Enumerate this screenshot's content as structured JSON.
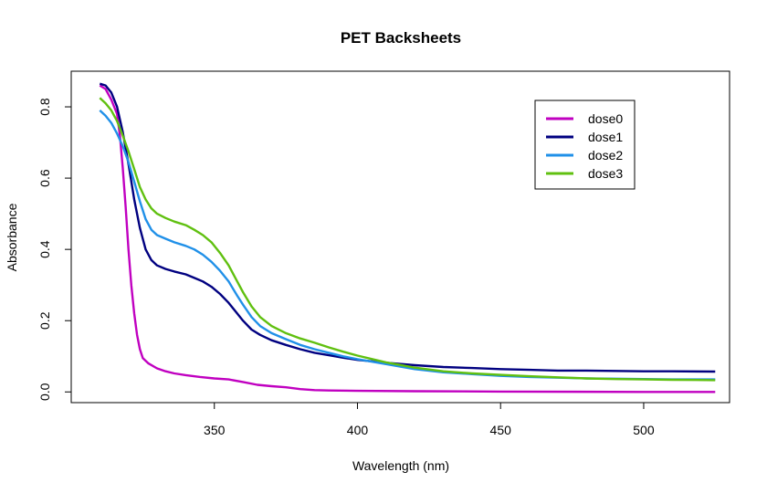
{
  "chart_data": {
    "type": "line",
    "title": "PET Backsheets",
    "xlabel": "Wavelength (nm)",
    "ylabel": "Absorbance",
    "xlim": [
      300,
      530
    ],
    "ylim": [
      -0.03,
      0.9
    ],
    "x_ticks": [
      "350",
      "400",
      "450",
      "500"
    ],
    "x_tick_values": [
      350,
      400,
      450,
      500
    ],
    "y_ticks": [
      "0.0",
      "0.2",
      "0.4",
      "0.6",
      "0.8"
    ],
    "y_tick_values": [
      0,
      0.2,
      0.4,
      0.6,
      0.8
    ],
    "grid": false,
    "legend_position": "top-right",
    "series": [
      {
        "name": "dose0",
        "color": "#C000C0",
        "points": [
          [
            310,
            0.86
          ],
          [
            312,
            0.85
          ],
          [
            314,
            0.82
          ],
          [
            316,
            0.78
          ],
          [
            317,
            0.72
          ],
          [
            318,
            0.63
          ],
          [
            319,
            0.52
          ],
          [
            320,
            0.4
          ],
          [
            321,
            0.3
          ],
          [
            322,
            0.22
          ],
          [
            323,
            0.16
          ],
          [
            324,
            0.12
          ],
          [
            325,
            0.095
          ],
          [
            327,
            0.08
          ],
          [
            330,
            0.066
          ],
          [
            333,
            0.058
          ],
          [
            336,
            0.052
          ],
          [
            340,
            0.047
          ],
          [
            345,
            0.042
          ],
          [
            350,
            0.038
          ],
          [
            355,
            0.035
          ],
          [
            360,
            0.028
          ],
          [
            365,
            0.02
          ],
          [
            370,
            0.016
          ],
          [
            375,
            0.013
          ],
          [
            380,
            0.008
          ],
          [
            385,
            0.005
          ],
          [
            390,
            0.004
          ],
          [
            400,
            0.003
          ],
          [
            420,
            0.002
          ],
          [
            450,
            0.001
          ],
          [
            500,
            0.0
          ],
          [
            525,
            0.0
          ]
        ]
      },
      {
        "name": "dose1",
        "color": "#000080",
        "points": [
          [
            310,
            0.865
          ],
          [
            312,
            0.86
          ],
          [
            314,
            0.84
          ],
          [
            316,
            0.8
          ],
          [
            318,
            0.73
          ],
          [
            320,
            0.64
          ],
          [
            322,
            0.54
          ],
          [
            324,
            0.46
          ],
          [
            326,
            0.4
          ],
          [
            328,
            0.37
          ],
          [
            330,
            0.355
          ],
          [
            333,
            0.345
          ],
          [
            336,
            0.338
          ],
          [
            340,
            0.33
          ],
          [
            343,
            0.32
          ],
          [
            346,
            0.31
          ],
          [
            349,
            0.295
          ],
          [
            352,
            0.275
          ],
          [
            355,
            0.25
          ],
          [
            358,
            0.22
          ],
          [
            360,
            0.2
          ],
          [
            363,
            0.175
          ],
          [
            366,
            0.16
          ],
          [
            370,
            0.145
          ],
          [
            375,
            0.132
          ],
          [
            380,
            0.12
          ],
          [
            385,
            0.11
          ],
          [
            390,
            0.103
          ],
          [
            395,
            0.096
          ],
          [
            400,
            0.09
          ],
          [
            410,
            0.082
          ],
          [
            420,
            0.075
          ],
          [
            430,
            0.07
          ],
          [
            440,
            0.067
          ],
          [
            450,
            0.064
          ],
          [
            460,
            0.062
          ],
          [
            470,
            0.06
          ],
          [
            480,
            0.06
          ],
          [
            490,
            0.059
          ],
          [
            500,
            0.058
          ],
          [
            510,
            0.058
          ],
          [
            525,
            0.057
          ]
        ]
      },
      {
        "name": "dose2",
        "color": "#2090E8",
        "points": [
          [
            310,
            0.79
          ],
          [
            312,
            0.775
          ],
          [
            314,
            0.755
          ],
          [
            316,
            0.725
          ],
          [
            318,
            0.69
          ],
          [
            320,
            0.645
          ],
          [
            322,
            0.59
          ],
          [
            324,
            0.535
          ],
          [
            326,
            0.485
          ],
          [
            328,
            0.455
          ],
          [
            330,
            0.44
          ],
          [
            333,
            0.43
          ],
          [
            336,
            0.42
          ],
          [
            340,
            0.41
          ],
          [
            343,
            0.4
          ],
          [
            346,
            0.385
          ],
          [
            349,
            0.365
          ],
          [
            352,
            0.34
          ],
          [
            355,
            0.31
          ],
          [
            358,
            0.27
          ],
          [
            360,
            0.245
          ],
          [
            363,
            0.21
          ],
          [
            366,
            0.185
          ],
          [
            370,
            0.165
          ],
          [
            375,
            0.148
          ],
          [
            380,
            0.132
          ],
          [
            385,
            0.12
          ],
          [
            390,
            0.11
          ],
          [
            395,
            0.1
          ],
          [
            400,
            0.092
          ],
          [
            410,
            0.078
          ],
          [
            420,
            0.064
          ],
          [
            430,
            0.055
          ],
          [
            440,
            0.05
          ],
          [
            450,
            0.045
          ],
          [
            460,
            0.042
          ],
          [
            470,
            0.04
          ],
          [
            480,
            0.038
          ],
          [
            490,
            0.037
          ],
          [
            500,
            0.036
          ],
          [
            510,
            0.035
          ],
          [
            525,
            0.035
          ]
        ]
      },
      {
        "name": "dose3",
        "color": "#60C010",
        "points": [
          [
            310,
            0.825
          ],
          [
            312,
            0.81
          ],
          [
            314,
            0.79
          ],
          [
            316,
            0.76
          ],
          [
            318,
            0.72
          ],
          [
            320,
            0.675
          ],
          [
            322,
            0.625
          ],
          [
            324,
            0.575
          ],
          [
            326,
            0.54
          ],
          [
            328,
            0.515
          ],
          [
            330,
            0.5
          ],
          [
            333,
            0.488
          ],
          [
            336,
            0.478
          ],
          [
            340,
            0.468
          ],
          [
            343,
            0.455
          ],
          [
            346,
            0.44
          ],
          [
            349,
            0.42
          ],
          [
            352,
            0.39
          ],
          [
            355,
            0.355
          ],
          [
            358,
            0.31
          ],
          [
            360,
            0.28
          ],
          [
            363,
            0.24
          ],
          [
            366,
            0.21
          ],
          [
            370,
            0.185
          ],
          [
            375,
            0.165
          ],
          [
            380,
            0.15
          ],
          [
            385,
            0.138
          ],
          [
            390,
            0.125
          ],
          [
            395,
            0.113
          ],
          [
            400,
            0.102
          ],
          [
            410,
            0.083
          ],
          [
            420,
            0.068
          ],
          [
            430,
            0.058
          ],
          [
            440,
            0.052
          ],
          [
            450,
            0.048
          ],
          [
            460,
            0.044
          ],
          [
            470,
            0.041
          ],
          [
            480,
            0.038
          ],
          [
            490,
            0.036
          ],
          [
            500,
            0.035
          ],
          [
            510,
            0.034
          ],
          [
            525,
            0.033
          ]
        ]
      }
    ]
  }
}
